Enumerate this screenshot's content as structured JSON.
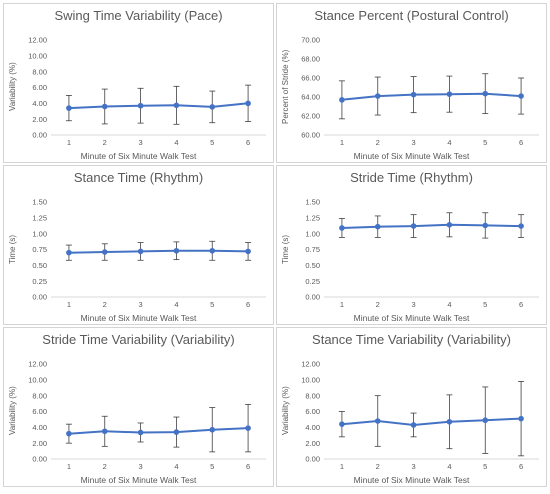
{
  "colors": {
    "series": "#4472c4",
    "error_bar": "#404040",
    "grid": "#d9d9d9",
    "text": "#595959"
  },
  "chart_data": [
    {
      "type": "line",
      "title": "Swing Time Variability (Pace)",
      "xlabel": "Minute of Six Minute Walk Test",
      "ylabel": "Variability (%)",
      "x": [
        1,
        2,
        3,
        4,
        5,
        6
      ],
      "ylim": [
        0,
        12
      ],
      "yticks": [
        "0.00",
        "2.00",
        "4.00",
        "6.00",
        "8.00",
        "10.00",
        "12.00"
      ],
      "values": [
        3.4,
        3.6,
        3.7,
        3.75,
        3.55,
        4.0
      ],
      "error": [
        1.6,
        2.2,
        2.2,
        2.4,
        2.0,
        2.3
      ],
      "grid": false
    },
    {
      "type": "line",
      "title": "Stance Percent (Postural Control)",
      "xlabel": "Minute of Six Minute Walk Test",
      "ylabel": "Percent of Stride (%)",
      "x": [
        1,
        2,
        3,
        4,
        5,
        6
      ],
      "ylim": [
        60,
        70
      ],
      "yticks": [
        "60.00",
        "62.00",
        "64.00",
        "66.00",
        "68.00",
        "70.00"
      ],
      "values": [
        63.7,
        64.1,
        64.25,
        64.3,
        64.35,
        64.1
      ],
      "error": [
        2.0,
        2.0,
        1.9,
        1.9,
        2.1,
        1.9
      ],
      "grid": false
    },
    {
      "type": "line",
      "title": "Stance Time (Rhythm)",
      "xlabel": "Minute of Six Minute Walk Test",
      "ylabel": "Time (s)",
      "x": [
        1,
        2,
        3,
        4,
        5,
        6
      ],
      "ylim": [
        0,
        1.5
      ],
      "yticks": [
        "0.00",
        "0.25",
        "0.50",
        "0.75",
        "1.00",
        "1.25",
        "1.50"
      ],
      "values": [
        0.7,
        0.71,
        0.72,
        0.73,
        0.73,
        0.72
      ],
      "error": [
        0.12,
        0.13,
        0.14,
        0.14,
        0.15,
        0.14
      ],
      "grid": false
    },
    {
      "type": "line",
      "title": "Stride Time (Rhythm)",
      "xlabel": "Minute of Six Minute Walk Test",
      "ylabel": "Time (s)",
      "x": [
        1,
        2,
        3,
        4,
        5,
        6
      ],
      "ylim": [
        0,
        1.5
      ],
      "yticks": [
        "0.00",
        "0.25",
        "0.50",
        "0.75",
        "1.00",
        "1.25",
        "1.50"
      ],
      "values": [
        1.09,
        1.11,
        1.12,
        1.14,
        1.13,
        1.12
      ],
      "error": [
        0.15,
        0.17,
        0.18,
        0.19,
        0.2,
        0.18
      ],
      "grid": false
    },
    {
      "type": "line",
      "title": "Stride Time Variability (Variability)",
      "xlabel": "Minute of Six Minute Walk Test",
      "ylabel": "Variability (%)",
      "x": [
        1,
        2,
        3,
        4,
        5,
        6
      ],
      "ylim": [
        0,
        12
      ],
      "yticks": [
        "0.00",
        "2.00",
        "4.00",
        "6.00",
        "8.00",
        "10.00",
        "12.00"
      ],
      "values": [
        3.2,
        3.5,
        3.35,
        3.4,
        3.7,
        3.9
      ],
      "error": [
        1.2,
        1.9,
        1.2,
        1.9,
        2.8,
        3.0
      ],
      "grid": false
    },
    {
      "type": "line",
      "title": "Stance Time Variability (Variability)",
      "xlabel": "Minute of Six Minute Walk Test",
      "ylabel": "Variability (%)",
      "x": [
        1,
        2,
        3,
        4,
        5,
        6
      ],
      "ylim": [
        0,
        12
      ],
      "yticks": [
        "0.00",
        "2.00",
        "4.00",
        "6.00",
        "8.00",
        "10.00",
        "12.00"
      ],
      "values": [
        4.4,
        4.8,
        4.3,
        4.7,
        4.9,
        5.1
      ],
      "error": [
        1.6,
        3.2,
        1.5,
        3.4,
        4.2,
        4.7
      ],
      "grid": false
    }
  ]
}
